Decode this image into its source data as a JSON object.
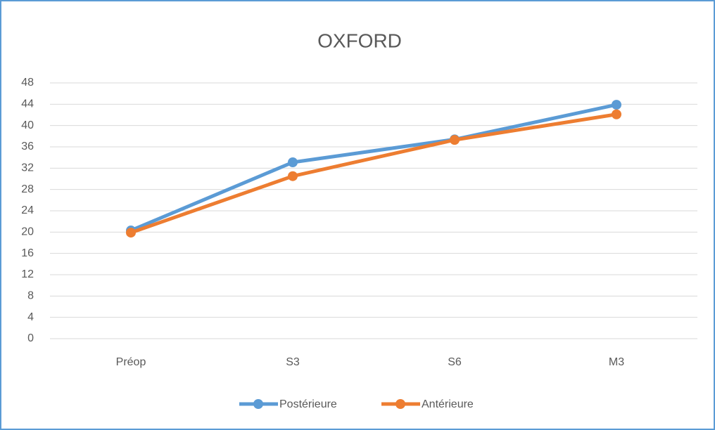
{
  "chart_data": {
    "type": "line",
    "title": "OXFORD",
    "categories": [
      "Préop",
      "S3",
      "S6",
      "M3"
    ],
    "series": [
      {
        "name": "Postérieure",
        "color": "#5b9bd5",
        "values": [
          20.3,
          33.1,
          37.4,
          43.9
        ]
      },
      {
        "name": "Antérieure",
        "color": "#ed7d31",
        "values": [
          19.9,
          30.5,
          37.3,
          42.1
        ]
      }
    ],
    "ylim": [
      0,
      48
    ],
    "yticks": [
      0,
      4,
      8,
      12,
      16,
      20,
      24,
      28,
      32,
      36,
      40,
      44,
      48
    ],
    "grid": true,
    "legend": "bottom"
  }
}
